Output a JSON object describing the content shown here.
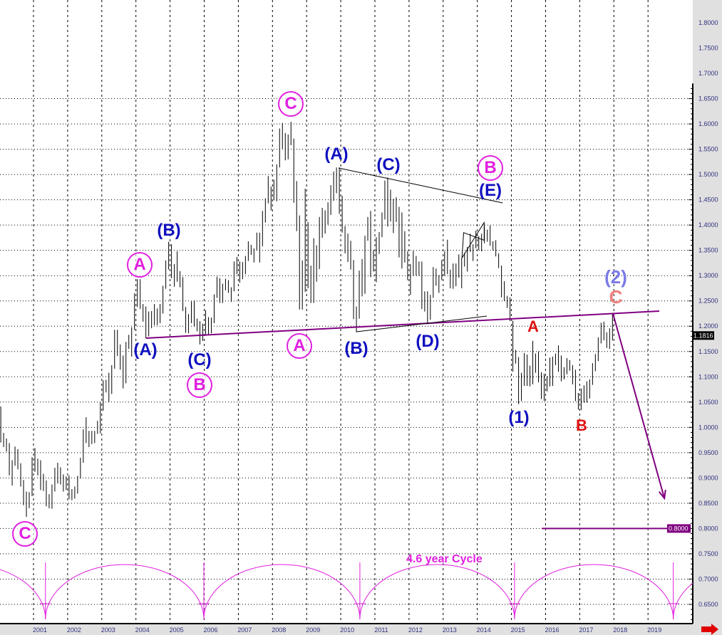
{
  "chart_data": {
    "type": "ohlc",
    "title": "",
    "xlabel": "",
    "ylabel": "",
    "ylim": [
      0.62,
      1.82
    ],
    "xlim": [
      2000.0,
      2020.2
    ],
    "yticks": [
      "1.8000",
      "1.7500",
      "1.7000",
      "1.6500",
      "1.6000",
      "1.5500",
      "1.5000",
      "1.4500",
      "1.4000",
      "1.3500",
      "1.3000",
      "1.2500",
      "1.2000",
      "1.1500",
      "1.1000",
      "1.0500",
      "1.0000",
      "0.9500",
      "0.9000",
      "0.8500",
      "0.8000",
      "0.7500",
      "0.7000",
      "0.6500"
    ],
    "xticks": [
      "2001",
      "2002",
      "2003",
      "2004",
      "2005",
      "2006",
      "2007",
      "2008",
      "2009",
      "2010",
      "2011",
      "2012",
      "2013",
      "2014",
      "2015",
      "2016",
      "2017",
      "2018",
      "2019"
    ],
    "grid": true,
    "start_year": 2000,
    "frequency": "monthly",
    "bars_high_low": [
      [
        1.0414,
        0.97
      ],
      [
        0.989,
        0.961
      ],
      [
        0.978,
        0.952
      ],
      [
        0.969,
        0.905
      ],
      [
        0.935,
        0.885
      ],
      [
        0.962,
        0.924
      ],
      [
        0.957,
        0.917
      ],
      [
        0.929,
        0.883
      ],
      [
        0.896,
        0.846
      ],
      [
        0.873,
        0.8228
      ],
      [
        0.872,
        0.84
      ],
      [
        0.941,
        0.864
      ],
      [
        0.959,
        0.912
      ],
      [
        0.938,
        0.905
      ],
      [
        0.935,
        0.876
      ],
      [
        0.908,
        0.874
      ],
      [
        0.895,
        0.844
      ],
      [
        0.868,
        0.84
      ],
      [
        0.887,
        0.839
      ],
      [
        0.92,
        0.873
      ],
      [
        0.93,
        0.889
      ],
      [
        0.921,
        0.887
      ],
      [
        0.907,
        0.873
      ],
      [
        0.903,
        0.876
      ],
      [
        0.905,
        0.858
      ],
      [
        0.878,
        0.856
      ],
      [
        0.883,
        0.859
      ],
      [
        0.904,
        0.869
      ],
      [
        0.94,
        0.899
      ],
      [
        0.996,
        0.93
      ],
      [
        1.02,
        0.969
      ],
      [
        0.993,
        0.961
      ],
      [
        0.993,
        0.967
      ],
      [
        0.993,
        0.969
      ],
      [
        1.013,
        0.987
      ],
      [
        1.05,
        0.988
      ],
      [
        1.093,
        1.033
      ],
      [
        1.094,
        1.069
      ],
      [
        1.108,
        1.05
      ],
      [
        1.123,
        1.066
      ],
      [
        1.193,
        1.116
      ],
      [
        1.193,
        1.141
      ],
      [
        1.164,
        1.114
      ],
      [
        1.142,
        1.077
      ],
      [
        1.169,
        1.087
      ],
      [
        1.183,
        1.155
      ],
      [
        1.198,
        1.14
      ],
      [
        1.265,
        1.192
      ],
      [
        1.293,
        1.238
      ],
      [
        1.293,
        1.234
      ],
      [
        1.244,
        1.209
      ],
      [
        1.239,
        1.176
      ],
      [
        1.229,
        1.18
      ],
      [
        1.23,
        1.196
      ],
      [
        1.244,
        1.202
      ],
      [
        1.235,
        1.202
      ],
      [
        1.244,
        1.206
      ],
      [
        1.28,
        1.225
      ],
      [
        1.33,
        1.274
      ],
      [
        1.367,
        1.312
      ],
      [
        1.362,
        1.295
      ],
      [
        1.323,
        1.278
      ],
      [
        1.348,
        1.288
      ],
      [
        1.309,
        1.277
      ],
      [
        1.297,
        1.23
      ],
      [
        1.238,
        1.187
      ],
      [
        1.224,
        1.186
      ],
      [
        1.249,
        1.206
      ],
      [
        1.251,
        1.199
      ],
      [
        1.215,
        1.19
      ],
      [
        1.21,
        1.164
      ],
      [
        1.205,
        1.171
      ],
      [
        1.232,
        1.181
      ],
      [
        1.218,
        1.183
      ],
      [
        1.217,
        1.186
      ],
      [
        1.263,
        1.206
      ],
      [
        1.298,
        1.256
      ],
      [
        1.295,
        1.246
      ],
      [
        1.284,
        1.246
      ],
      [
        1.294,
        1.271
      ],
      [
        1.291,
        1.266
      ],
      [
        1.277,
        1.248
      ],
      [
        1.328,
        1.269
      ],
      [
        1.337,
        1.303
      ],
      [
        1.328,
        1.286
      ],
      [
        1.327,
        1.293
      ],
      [
        1.339,
        1.303
      ],
      [
        1.368,
        1.329
      ],
      [
        1.361,
        1.341
      ],
      [
        1.354,
        1.326
      ],
      [
        1.385,
        1.35
      ],
      [
        1.385,
        1.326
      ],
      [
        1.428,
        1.358
      ],
      [
        1.453,
        1.405
      ],
      [
        1.497,
        1.443
      ],
      [
        1.476,
        1.429
      ],
      [
        1.49,
        1.449
      ],
      [
        1.52,
        1.447
      ],
      [
        1.591,
        1.514
      ],
      [
        1.602,
        1.551
      ],
      [
        1.582,
        1.528
      ],
      [
        1.579,
        1.53
      ],
      [
        1.604,
        1.558
      ],
      [
        1.571,
        1.444
      ],
      [
        1.487,
        1.388
      ],
      [
        1.419,
        1.233
      ],
      [
        1.33,
        1.233
      ],
      [
        1.472,
        1.268
      ],
      [
        1.406,
        1.275
      ],
      [
        1.32,
        1.246
      ],
      [
        1.374,
        1.246
      ],
      [
        1.36,
        1.288
      ],
      [
        1.416,
        1.313
      ],
      [
        1.434,
        1.375
      ],
      [
        1.429,
        1.383
      ],
      [
        1.445,
        1.401
      ],
      [
        1.479,
        1.42
      ],
      [
        1.506,
        1.448
      ],
      [
        1.514,
        1.463
      ],
      [
        1.514,
        1.422
      ],
      [
        1.458,
        1.385
      ],
      [
        1.398,
        1.344
      ],
      [
        1.383,
        1.327
      ],
      [
        1.369,
        1.312
      ],
      [
        1.331,
        1.214
      ],
      [
        1.239,
        1.188
      ],
      [
        1.31,
        1.215
      ],
      [
        1.333,
        1.259
      ],
      [
        1.379,
        1.264
      ],
      [
        1.416,
        1.369
      ],
      [
        1.428,
        1.297
      ],
      [
        1.35,
        1.308
      ],
      [
        1.376,
        1.287
      ],
      [
        1.386,
        1.343
      ],
      [
        1.425,
        1.376
      ],
      [
        1.488,
        1.411
      ],
      [
        1.494,
        1.397
      ],
      [
        1.47,
        1.407
      ],
      [
        1.452,
        1.384
      ],
      [
        1.455,
        1.406
      ],
      [
        1.436,
        1.336
      ],
      [
        1.425,
        1.314
      ],
      [
        1.388,
        1.326
      ],
      [
        1.348,
        1.291
      ],
      [
        1.323,
        1.262
      ],
      [
        1.349,
        1.3
      ],
      [
        1.339,
        1.3
      ],
      [
        1.328,
        1.3
      ],
      [
        1.328,
        1.234
      ],
      [
        1.269,
        1.229
      ],
      [
        1.269,
        1.204
      ],
      [
        1.262,
        1.213
      ],
      [
        1.317,
        1.256
      ],
      [
        1.314,
        1.28
      ],
      [
        1.301,
        1.266
      ],
      [
        1.331,
        1.291
      ],
      [
        1.348,
        1.3
      ],
      [
        1.371,
        1.303
      ],
      [
        1.312,
        1.275
      ],
      [
        1.324,
        1.274
      ],
      [
        1.324,
        1.279
      ],
      [
        1.342,
        1.296
      ],
      [
        1.335,
        1.275
      ],
      [
        1.345,
        1.318
      ],
      [
        1.357,
        1.308
      ],
      [
        1.383,
        1.347
      ],
      [
        1.362,
        1.329
      ],
      [
        1.389,
        1.354
      ],
      [
        1.378,
        1.351
      ],
      [
        1.383,
        1.348
      ],
      [
        1.397,
        1.364
      ],
      [
        1.391,
        1.367
      ],
      [
        1.399,
        1.359
      ],
      [
        1.368,
        1.35
      ],
      [
        1.37,
        1.338
      ],
      [
        1.344,
        1.315
      ],
      [
        1.32,
        1.257
      ],
      [
        1.289,
        1.25
      ],
      [
        1.26,
        1.236
      ],
      [
        1.257,
        1.21
      ],
      [
        1.211,
        1.11
      ],
      [
        1.153,
        1.126
      ],
      [
        1.139,
        1.046
      ],
      [
        1.108,
        1.052
      ],
      [
        1.147,
        1.082
      ],
      [
        1.144,
        1.082
      ],
      [
        1.122,
        1.081
      ],
      [
        1.171,
        1.085
      ],
      [
        1.146,
        1.108
      ],
      [
        1.15,
        1.089
      ],
      [
        1.109,
        1.056
      ],
      [
        1.106,
        1.052
      ],
      [
        1.101,
        1.071
      ],
      [
        1.138,
        1.081
      ],
      [
        1.14,
        1.082
      ],
      [
        1.146,
        1.123
      ],
      [
        1.162,
        1.11
      ],
      [
        1.142,
        1.091
      ],
      [
        1.119,
        1.095
      ],
      [
        1.137,
        1.105
      ],
      [
        1.133,
        1.112
      ],
      [
        1.123,
        1.085
      ],
      [
        1.114,
        1.052
      ],
      [
        1.068,
        1.035
      ],
      [
        1.077,
        1.034
      ],
      [
        1.083,
        1.049
      ],
      [
        1.091,
        1.049
      ],
      [
        1.095,
        1.057
      ],
      [
        1.127,
        1.084
      ],
      [
        1.145,
        1.111
      ],
      [
        1.178,
        1.131
      ],
      [
        1.207,
        1.166
      ],
      [
        1.209,
        1.172
      ],
      [
        1.188,
        1.157
      ],
      [
        1.196,
        1.155
      ],
      [
        1.226,
        1.172
      ]
    ],
    "last_price": "1.1816",
    "target_price": "0.8000",
    "trendlines": [
      {
        "role": "neckline",
        "color": "#800080",
        "from": [
          2004.3,
          1.1764
        ],
        "to": [
          2019.33,
          1.2299
        ]
      },
      {
        "role": "triangle-upper",
        "color": "#000000",
        "from": [
          2009.94,
          1.5128
        ],
        "to": [
          2014.74,
          1.4439
        ]
      },
      {
        "role": "triangle-lower",
        "color": "#000000",
        "from": [
          2010.46,
          1.189
        ],
        "to": [
          2014.28,
          1.22
        ]
      },
      {
        "role": "target-level",
        "color": "#800080",
        "from": [
          2015.89,
          0.8
        ],
        "to": [
          2020.2,
          0.8
        ]
      }
    ],
    "flag": [
      [
        2013.55,
        1.335
      ],
      [
        2014.2,
        1.405
      ],
      [
        2014.2,
        1.37
      ],
      [
        2013.6,
        1.385
      ]
    ],
    "forecast_arrow": {
      "color": "#800080",
      "from": [
        2017.97,
        1.2257
      ],
      "to": [
        2019.48,
        0.8597
      ]
    },
    "cycle": {
      "label": "4.6 year Cycle",
      "color": "#e020e0",
      "length_years": 4.6,
      "troughs": [
        2001.35,
        2005.99,
        2010.56,
        2015.09,
        2019.74
      ]
    },
    "wave_labels": [
      {
        "text": "C",
        "style": "circled"
      },
      {
        "text": "A",
        "style": "circled"
      },
      {
        "text": "(A)",
        "style": "blue"
      },
      {
        "text": "(B)",
        "style": "blue"
      },
      {
        "text": "(C)",
        "style": "blue"
      },
      {
        "text": "B",
        "style": "circled"
      },
      {
        "text": "C",
        "style": "circled"
      },
      {
        "text": "A",
        "style": "circled"
      },
      {
        "text": "(A)",
        "style": "blue"
      },
      {
        "text": "(C)",
        "style": "blue"
      },
      {
        "text": "(B)",
        "style": "blue"
      },
      {
        "text": "(D)",
        "style": "blue"
      },
      {
        "text": "B",
        "style": "circled"
      },
      {
        "text": "(E)",
        "style": "blue"
      },
      {
        "text": "(1)",
        "style": "blue"
      },
      {
        "text": "A",
        "style": "red"
      },
      {
        "text": "B",
        "style": "red"
      },
      {
        "text": "(2)",
        "style": "light-blue"
      },
      {
        "text": "C",
        "style": "salmon"
      }
    ],
    "colors": {
      "axis_bg": "#e0e0e0",
      "bars": "#000000",
      "tick_text": "#303080",
      "nav_arrow": "#e00000"
    }
  }
}
